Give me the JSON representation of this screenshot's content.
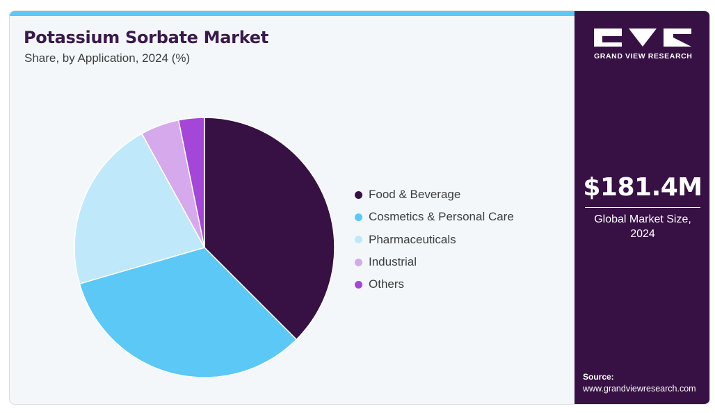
{
  "header": {
    "title": "Potassium Sorbate Market",
    "subtitle": "Share, by Application, 2024 (%)"
  },
  "chart_data": {
    "type": "pie",
    "title": "Potassium Sorbate Market",
    "subtitle": "Share, by Application, 2024 (%)",
    "start_angle_deg": 0,
    "direction": "clockwise",
    "legend_position": "right",
    "slices": [
      {
        "label": "Food & Beverage",
        "value": 37.5,
        "color": "#371044"
      },
      {
        "label": "Cosmetics & Personal Care",
        "value": 33.0,
        "color": "#5bc8f5"
      },
      {
        "label": "Pharmaceuticals",
        "value": 21.5,
        "color": "#bfe9fa"
      },
      {
        "label": "Industrial",
        "value": 4.8,
        "color": "#d5a9ec"
      },
      {
        "label": "Others",
        "value": 3.2,
        "color": "#a446d8"
      }
    ]
  },
  "sidebar": {
    "logo": {
      "name": "GVR",
      "text": "GRAND VIEW RESEARCH"
    },
    "market_value": "$181.4M",
    "market_label": "Global Market Size, 2024",
    "source_label": "Source:",
    "source_url": "www.grandviewresearch.com"
  },
  "colors": {
    "accent_bar": "#5bc8f5",
    "sidebar_bg": "#371044",
    "panel_bg": "#f3f7fa",
    "title": "#3a1a4c"
  }
}
